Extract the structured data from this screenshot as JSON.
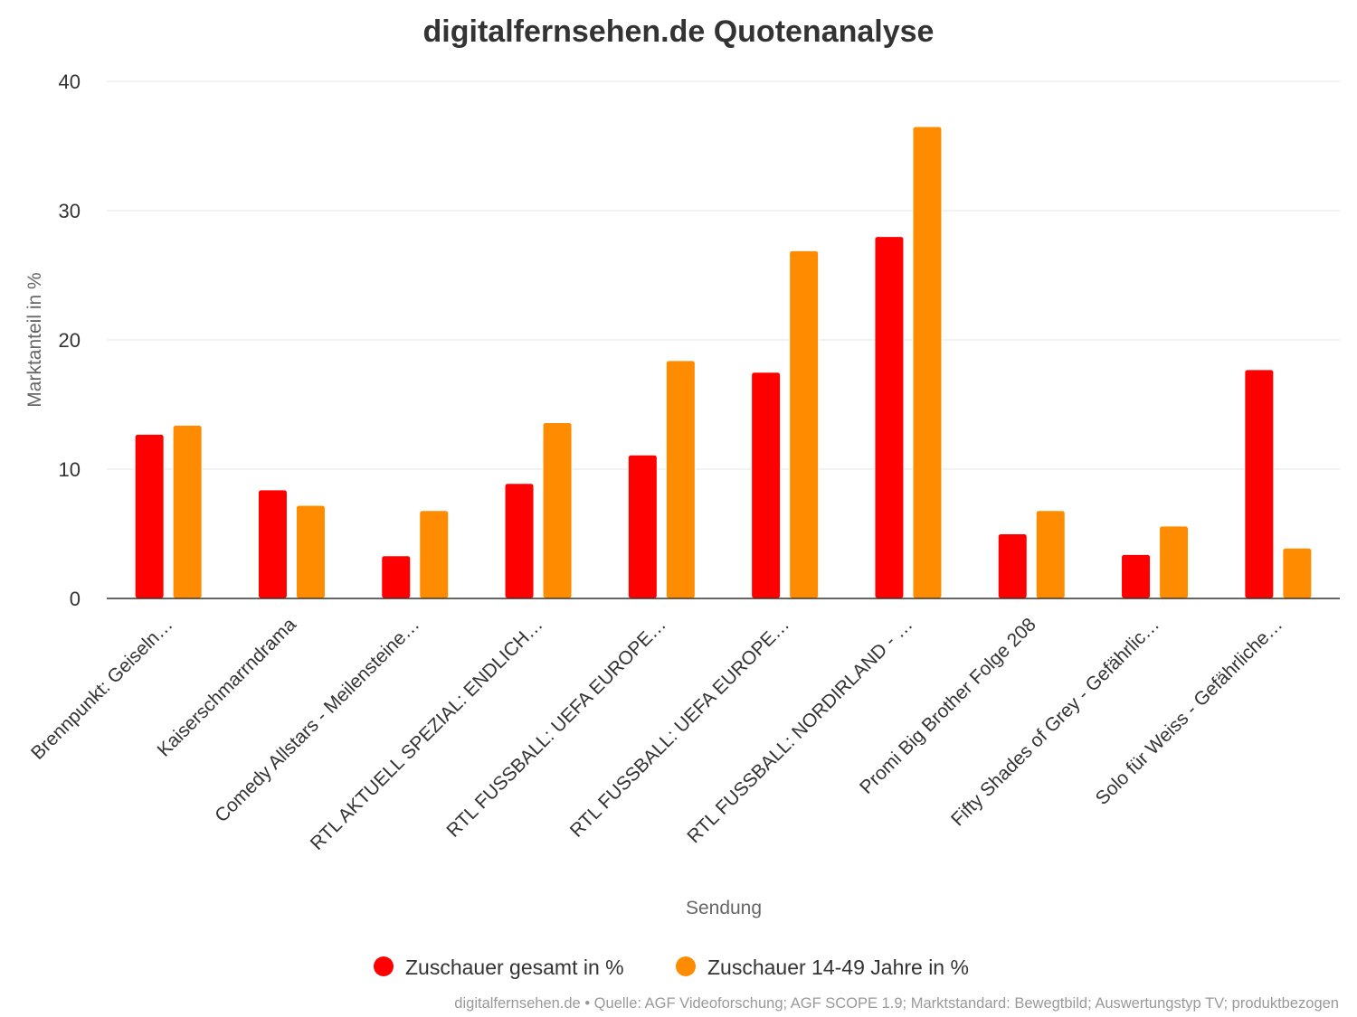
{
  "chart_data": {
    "type": "bar",
    "title": "digitalfernsehen.de Quotenanalyse",
    "xlabel": "Sendung",
    "ylabel": "Marktanteil in %",
    "ylim": [
      0,
      40
    ],
    "yticks": [
      0,
      10,
      20,
      30,
      40
    ],
    "grid": true,
    "legend_position": "bottom-center",
    "categories": [
      "Brennpunkt: Geiseln…",
      "Kaiserschmarrndrama",
      "Comedy Allstars - Meilensteine…",
      "RTL AKTUELL SPEZIAL: ENDLICH…",
      "RTL FUSSBALL: UEFA EUROPE…",
      "RTL FUSSBALL: UEFA EUROPE…",
      "RTL FUSSBALL: NORDIRLAND - …",
      "Promi Big Brother Folge 208",
      "Fifty Shades of Grey - Gefährlic…",
      "Solo für Weiss - Gefährliche…"
    ],
    "series": [
      {
        "name": "Zuschauer gesamt in %",
        "color": "#ff0000",
        "values": [
          12.7,
          8.4,
          3.3,
          8.9,
          11.1,
          17.5,
          28.0,
          5.0,
          3.4,
          17.7
        ]
      },
      {
        "name": "Zuschauer 14-49 Jahre in %",
        "color": "#ff8c00",
        "values": [
          13.4,
          7.2,
          6.8,
          13.6,
          18.4,
          26.9,
          36.5,
          6.8,
          5.6,
          3.9
        ]
      }
    ],
    "credits": "digitalfernsehen.de • Quelle: AGF Videoforschung; AGF SCOPE 1.9; Marktstandard: Bewegtbild; Auswertungstyp TV; produktbezogen"
  }
}
